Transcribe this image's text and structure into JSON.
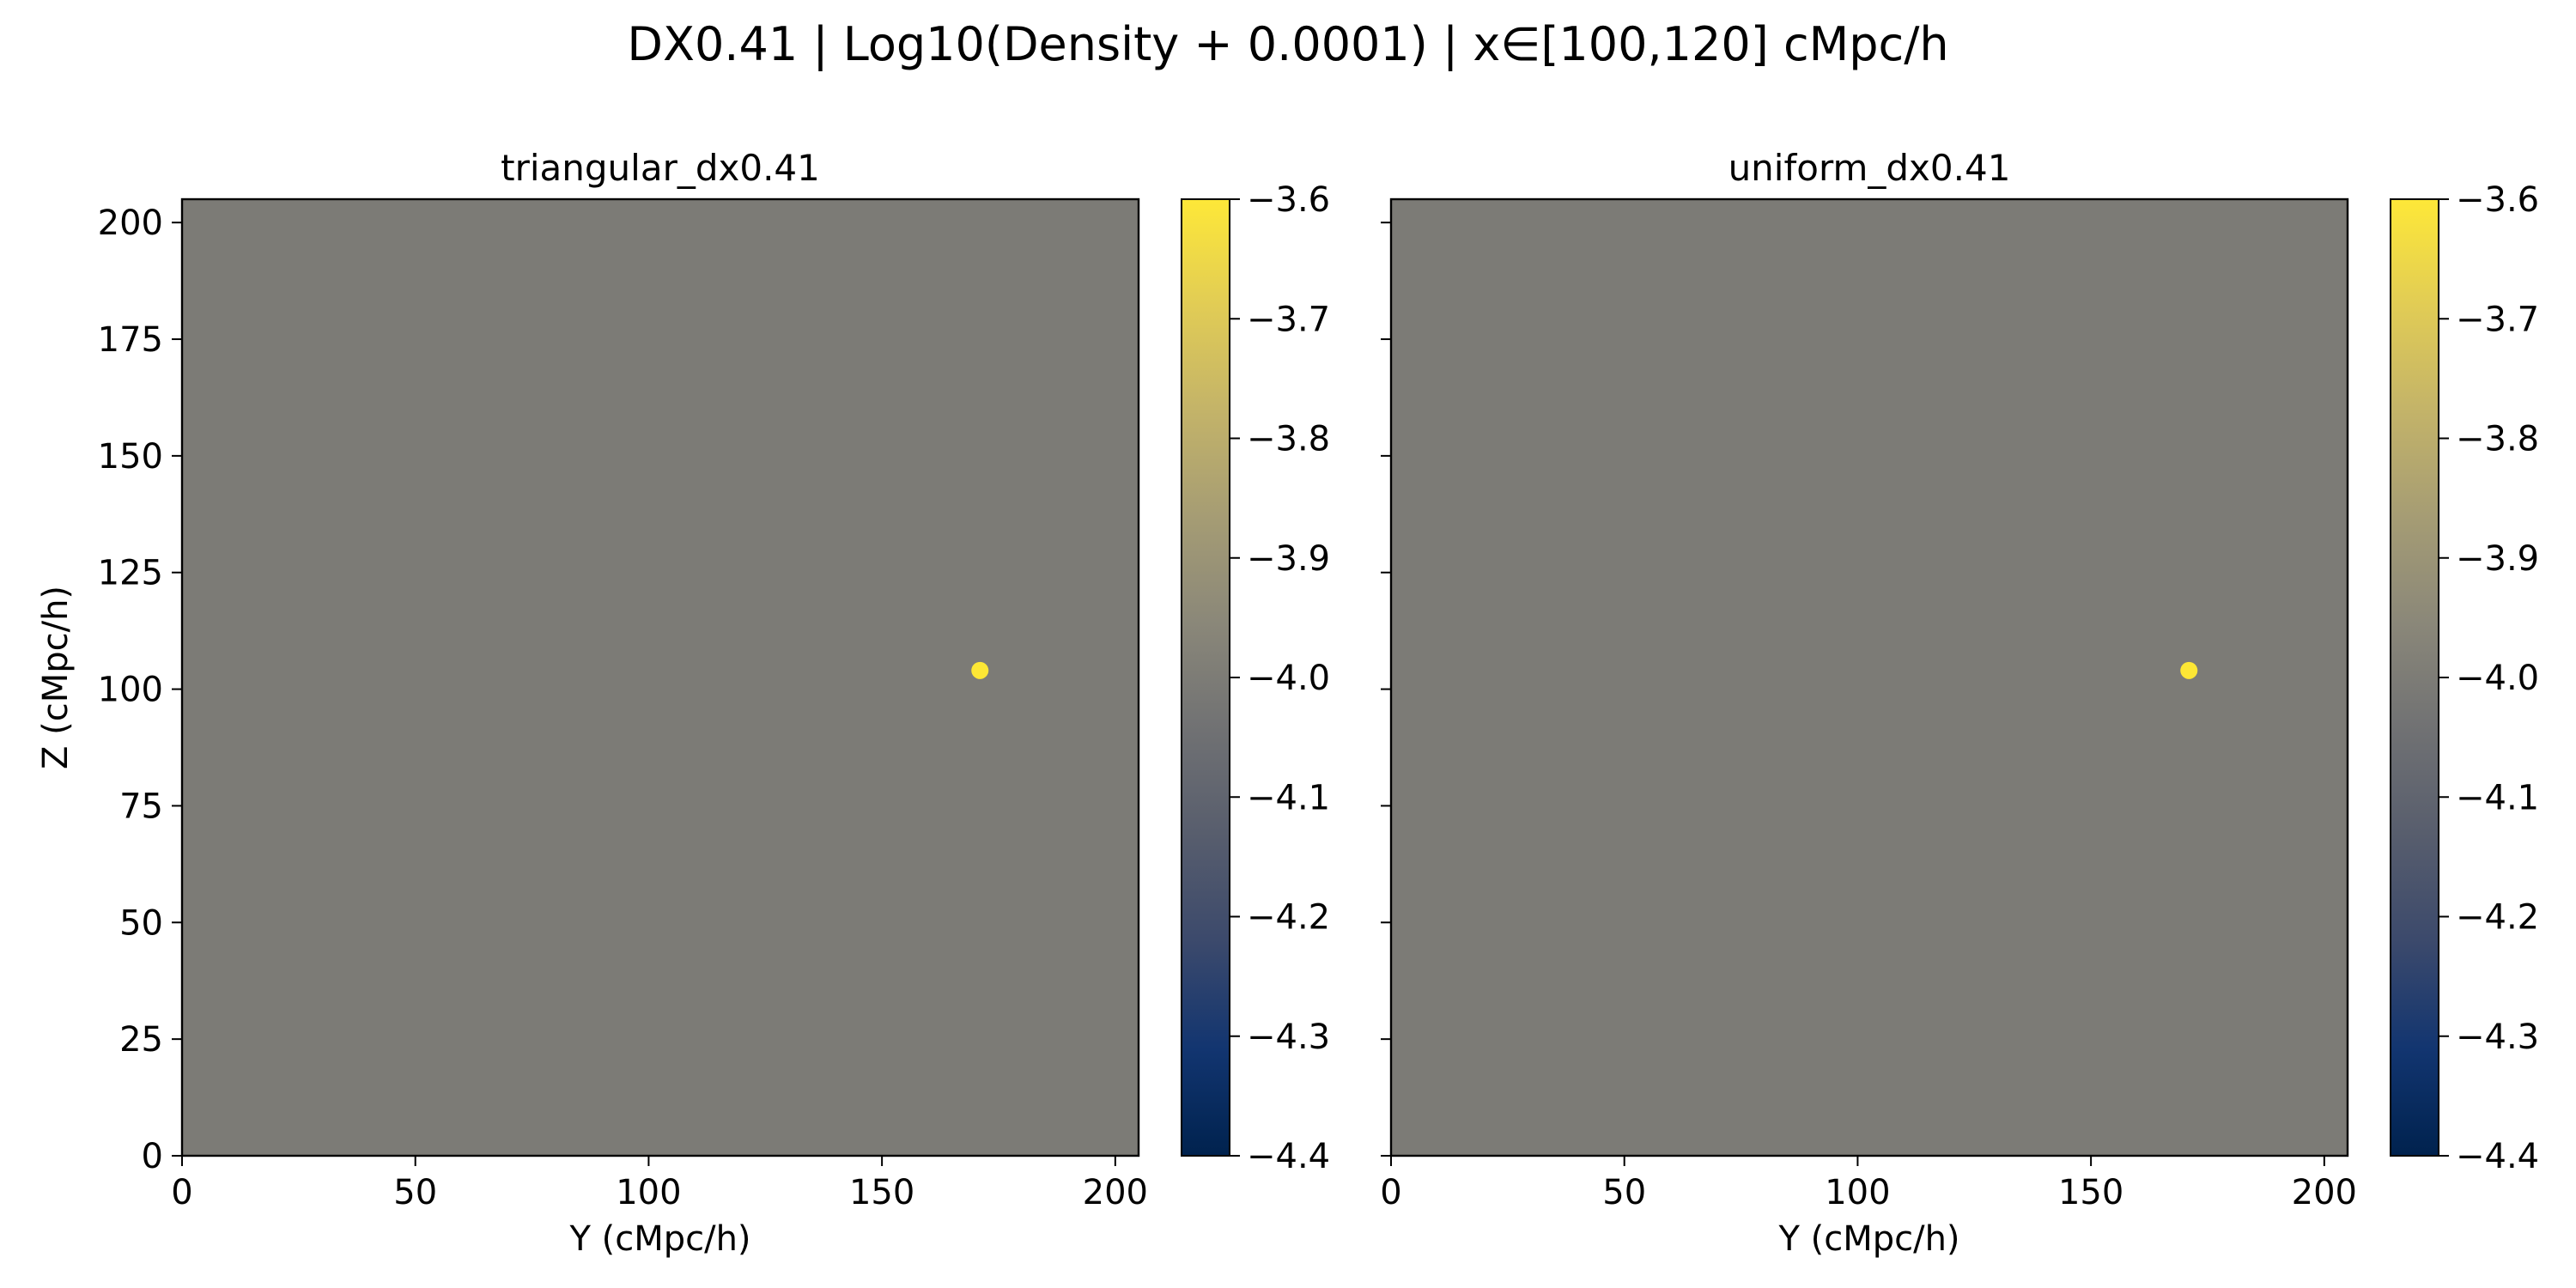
{
  "figure": {
    "suptitle": "DX0.41 | Log10(Density + 0.0001) | x∈[100,120] cMpc/h"
  },
  "colormap": {
    "name": "cividis",
    "stops": [
      "#00224e",
      "#123570",
      "#3b496c",
      "#575d6d",
      "#707173",
      "#8a8779",
      "#a59c74",
      "#c3b369",
      "#e1cc55",
      "#fee838"
    ],
    "background_color": "#7c7b76",
    "spot_color": "#fde735"
  },
  "chart_data": [
    {
      "type": "heatmap",
      "title": "triangular_dx0.41",
      "xlabel": "Y (cMpc/h)",
      "ylabel": "Z (cMpc/h)",
      "xlim": [
        0,
        205
      ],
      "ylim": [
        0,
        205
      ],
      "xticks": [
        0,
        50,
        100,
        150,
        200
      ],
      "yticks": [
        0,
        25,
        50,
        75,
        100,
        125,
        150,
        175,
        200
      ],
      "show_yticklabels": true,
      "background_value": -3.98,
      "features": [
        {
          "kind": "peak",
          "x": 171,
          "y": 104,
          "value": -3.6
        }
      ],
      "colorbar": {
        "range": [
          -4.4,
          -3.6
        ],
        "ticks": [
          -4.4,
          -4.3,
          -4.2,
          -4.1,
          -4.0,
          -3.9,
          -3.8,
          -3.7,
          -3.6
        ],
        "tick_labels": [
          "−4.4",
          "−4.3",
          "−4.2",
          "−4.1",
          "−4.0",
          "−3.9",
          "−3.8",
          "−3.7",
          "−3.6"
        ]
      }
    },
    {
      "type": "heatmap",
      "title": "uniform_dx0.41",
      "xlabel": "Y (cMpc/h)",
      "ylabel": "",
      "xlim": [
        0,
        205
      ],
      "ylim": [
        0,
        205
      ],
      "xticks": [
        0,
        50,
        100,
        150,
        200
      ],
      "yticks": [
        0,
        25,
        50,
        75,
        100,
        125,
        150,
        175,
        200
      ],
      "show_yticklabels": false,
      "background_value": -3.98,
      "features": [
        {
          "kind": "peak",
          "x": 171,
          "y": 104,
          "value": -3.6
        }
      ],
      "colorbar": {
        "range": [
          -4.4,
          -3.6
        ],
        "ticks": [
          -4.4,
          -4.3,
          -4.2,
          -4.1,
          -4.0,
          -3.9,
          -3.8,
          -3.7,
          -3.6
        ],
        "tick_labels": [
          "−4.4",
          "−4.3",
          "−4.2",
          "−4.1",
          "−4.0",
          "−3.9",
          "−3.8",
          "−3.7",
          "−3.6"
        ]
      }
    }
  ]
}
